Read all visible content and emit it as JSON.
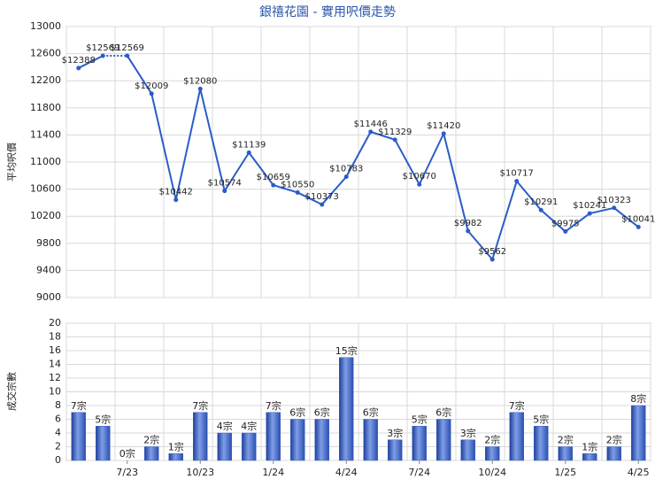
{
  "chart_data": [
    {
      "type": "line",
      "title": "銀禧花園 - 實用呎價走勢",
      "y_label": "平均呎價",
      "series": [
        {
          "color": "#2a5cc8",
          "values": [
            12388,
            12569,
            12569,
            12009,
            10442,
            12080,
            10574,
            11139,
            10659,
            10550,
            10373,
            10783,
            11446,
            11329,
            10670,
            11420,
            9982,
            9562,
            10717,
            10291,
            9975,
            10241,
            10323,
            10041
          ],
          "value_labels": [
            "$12388",
            "$12569",
            "$12569",
            "$12009",
            "$10442",
            "$12080",
            "$10574",
            "$11139",
            "$10659",
            "$10550",
            "$10373",
            "$10783",
            "$11446",
            "$11329",
            "$10670",
            "$11420",
            "$9982",
            "$9562",
            "$10717",
            "$10291",
            "$9975",
            "$10241",
            "$10323",
            "$10041"
          ]
        }
      ],
      "ylim": [
        9000,
        13000
      ],
      "yticks": [
        9000,
        9400,
        9800,
        10200,
        10600,
        11000,
        11400,
        11800,
        12200,
        12600,
        13000
      ],
      "grid": true
    },
    {
      "type": "bar",
      "y_label": "成交宗數",
      "categories": [
        null,
        null,
        "7/23",
        null,
        null,
        "10/23",
        null,
        null,
        "1/24",
        null,
        null,
        "4/24",
        null,
        null,
        "7/24",
        null,
        null,
        "10/24",
        null,
        null,
        "1/25",
        null,
        null,
        "4/25"
      ],
      "values": [
        7,
        5,
        0,
        2,
        1,
        7,
        4,
        4,
        7,
        6,
        6,
        15,
        6,
        3,
        5,
        6,
        3,
        2,
        7,
        5,
        2,
        1,
        2,
        8
      ],
      "value_labels": [
        "7宗",
        "5宗",
        "0宗",
        "2宗",
        "1宗",
        "7宗",
        "4宗",
        "4宗",
        "7宗",
        "6宗",
        "6宗",
        "15宗",
        "6宗",
        "3宗",
        "5宗",
        "6宗",
        "3宗",
        "2宗",
        "7宗",
        "5宗",
        "2宗",
        "1宗",
        "2宗",
        "8宗"
      ],
      "color": "#3b62c4",
      "ylim": [
        0,
        20
      ],
      "yticks": [
        0,
        2,
        4,
        6,
        8,
        10,
        12,
        14,
        16,
        18,
        20
      ],
      "grid": true
    }
  ]
}
